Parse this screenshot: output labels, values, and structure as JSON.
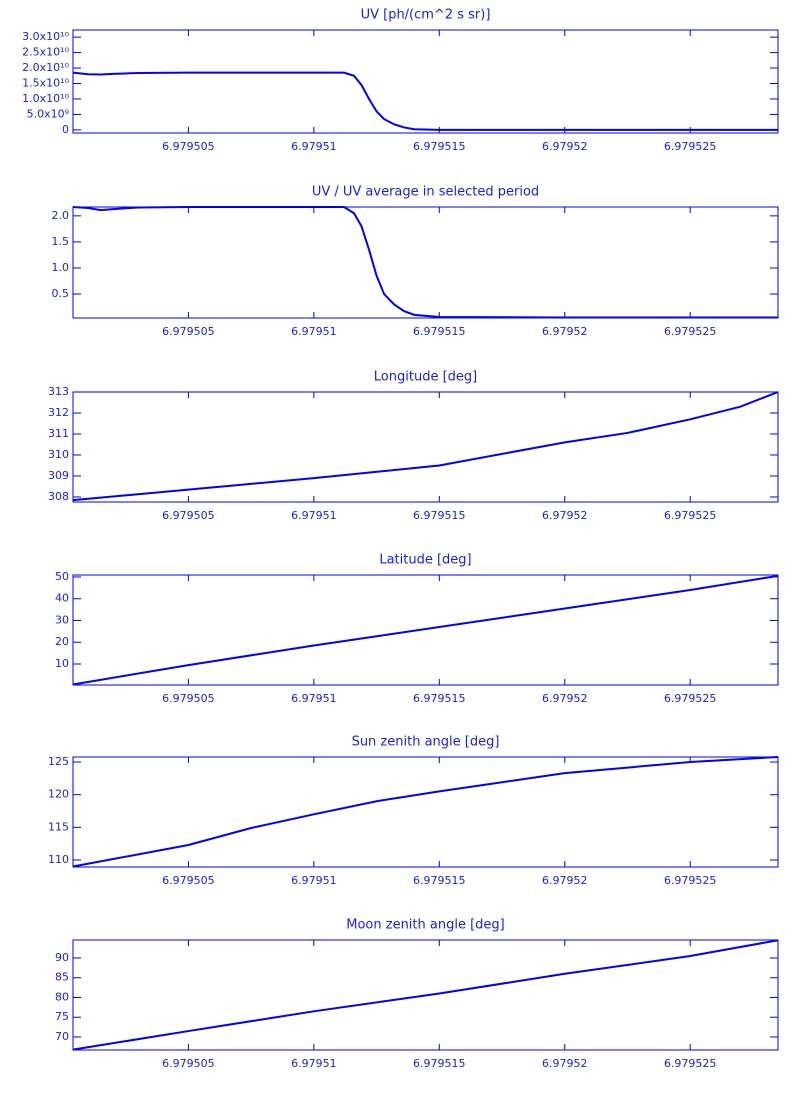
{
  "chart_data": [
    {
      "type": "line",
      "title": "UV [ph/(cm^2 s sr)]",
      "color": "#0000ff",
      "x": [
        6.9795004,
        6.979501,
        6.9795015,
        6.979502,
        6.979503,
        6.979505,
        6.979508,
        6.97951,
        6.9795112,
        6.9795116,
        6.9795119,
        6.9795122,
        6.9795125,
        6.9795128,
        6.9795132,
        6.9795136,
        6.979514,
        6.979515,
        6.97952,
        6.979525,
        6.9795285
      ],
      "values": [
        18500000000,
        18000000000,
        17900000000,
        18100000000,
        18400000000,
        18500000000,
        18500000000,
        18500000000,
        18500000000,
        17500000000,
        14500000000,
        10000000000,
        6000000000,
        3500000000,
        1800000000,
        800000000,
        200000000,
        0,
        0,
        0,
        0
      ],
      "xlim": [
        6.9795004,
        6.9795285
      ],
      "xticks": [
        6.979505,
        6.97951,
        6.979515,
        6.97952,
        6.979525
      ],
      "ylim": [
        -1000000000,
        32300000000
      ],
      "yticks": [
        0,
        {
          "value": 5000000000,
          "label": "5.0x10⁹"
        },
        {
          "value": 10000000000,
          "label": "1.0x10¹⁰"
        },
        {
          "value": 15000000000,
          "label": "1.5x10¹⁰"
        },
        {
          "value": 20000000000,
          "label": "2.0x10¹⁰"
        },
        {
          "value": 25000000000,
          "label": "2.5x10¹⁰"
        },
        {
          "value": 30000000000,
          "label": "3.0x10¹⁰"
        }
      ]
    },
    {
      "type": "line",
      "title": "UV / UV average in selected period",
      "color": "#0000ff",
      "x": [
        6.9795004,
        6.979501,
        6.9795015,
        6.979502,
        6.979503,
        6.979505,
        6.979508,
        6.97951,
        6.9795112,
        6.9795116,
        6.9795119,
        6.9795122,
        6.9795125,
        6.9795128,
        6.9795132,
        6.9795136,
        6.979514,
        6.979515,
        6.97952,
        6.979525,
        6.9795285
      ],
      "values": [
        2.17,
        2.15,
        2.11,
        2.13,
        2.16,
        2.17,
        2.17,
        2.17,
        2.17,
        2.05,
        1.8,
        1.35,
        0.85,
        0.5,
        0.3,
        0.17,
        0.1,
        0.06,
        0.05,
        0.05,
        0.05
      ],
      "xlim": [
        6.9795004,
        6.9795285
      ],
      "xticks": [
        6.979505,
        6.97951,
        6.979515,
        6.97952,
        6.979525
      ],
      "ylim": [
        0.04,
        2.17
      ],
      "yticks": [
        0.5,
        {
          "value": 1,
          "label": "1.0"
        },
        1.5,
        {
          "value": 2,
          "label": "2.0"
        }
      ]
    },
    {
      "type": "line",
      "title": "Longitude [deg]",
      "color": "#0000ff",
      "x": [
        6.9795004,
        6.979505,
        6.97951,
        6.979515,
        6.97952,
        6.9795225,
        6.979525,
        6.979527,
        6.9795285
      ],
      "values": [
        307.85,
        308.35,
        308.9,
        309.5,
        310.6,
        311.05,
        311.7,
        312.3,
        313.0
      ],
      "xlim": [
        6.9795004,
        6.9795285
      ],
      "xticks": [
        6.979505,
        6.97951,
        6.979515,
        6.97952,
        6.979525
      ],
      "ylim": [
        307.76,
        313.0
      ],
      "yticks": [
        308,
        309,
        310,
        311,
        312,
        313
      ]
    },
    {
      "type": "line",
      "title": "Latitude [deg]",
      "color": "#0000ff",
      "x": [
        6.9795004,
        6.979505,
        6.97951,
        6.979515,
        6.97952,
        6.979525,
        6.9795285
      ],
      "values": [
        0.6,
        9.5,
        18.5,
        27,
        35.5,
        44,
        50.5
      ],
      "xlim": [
        6.9795004,
        6.9795285
      ],
      "xticks": [
        6.979505,
        6.97951,
        6.979515,
        6.97952,
        6.979525
      ],
      "ylim": [
        0.35,
        50.9
      ],
      "yticks": [
        10,
        20,
        30,
        40,
        50
      ]
    },
    {
      "type": "line",
      "title": "Sun zenith angle [deg]",
      "color": "#0000ff",
      "x": [
        6.9795004,
        6.979505,
        6.9795075,
        6.97951,
        6.9795125,
        6.979515,
        6.97952,
        6.979525,
        6.9795285
      ],
      "values": [
        109,
        112.3,
        114.9,
        117,
        119,
        120.5,
        123.3,
        125.0,
        125.77
      ],
      "xlim": [
        6.9795004,
        6.9795285
      ],
      "xticks": [
        6.979505,
        6.97951,
        6.979515,
        6.97952,
        6.979525
      ],
      "ylim": [
        108.93,
        125.77
      ],
      "yticks": [
        110,
        115,
        120,
        125
      ]
    },
    {
      "type": "line",
      "title": "Moon zenith angle [deg]",
      "color": "#0000ff",
      "x": [
        6.9795004,
        6.979505,
        6.97951,
        6.979515,
        6.97952,
        6.979525,
        6.9795285
      ],
      "values": [
        66.8,
        71.5,
        76.5,
        81,
        86,
        90.5,
        94.5
      ],
      "xlim": [
        6.9795004,
        6.9795285
      ],
      "xticks": [
        6.979505,
        6.97951,
        6.979515,
        6.97952,
        6.979525
      ],
      "ylim": [
        66.7,
        94.56
      ],
      "yticks": [
        70,
        75,
        80,
        85,
        90
      ]
    }
  ]
}
